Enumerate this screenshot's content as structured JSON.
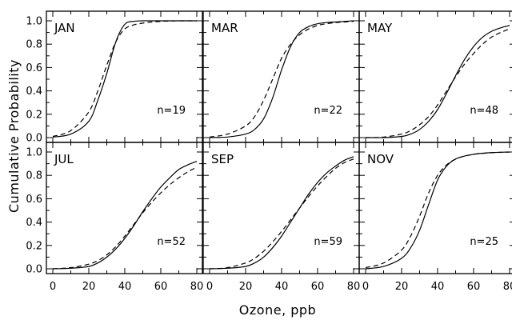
{
  "chart_data": {
    "type": "line",
    "xlabel": "Ozone, ppb",
    "ylabel": "Cumulative Probability",
    "xlim": [
      0,
      80
    ],
    "ylim": [
      0,
      1
    ],
    "x_ticks": [
      0,
      20,
      40,
      60,
      80
    ],
    "y_ticks": [
      0.0,
      0.2,
      0.4,
      0.6,
      0.8,
      1.0
    ],
    "x_tick_labels": [
      "0",
      "20",
      "40",
      "60",
      "80"
    ],
    "y_tick_labels": [
      "0.0",
      "0.2",
      "0.4",
      "0.6",
      "0.8",
      "1.0"
    ],
    "grid": false,
    "line_styles": [
      "solid",
      "dashed"
    ],
    "x": [
      0,
      10,
      20,
      25,
      30,
      35,
      40,
      45,
      50,
      55,
      60,
      65,
      70,
      75,
      80
    ],
    "panels": [
      {
        "label": "JAN",
        "n_label": "n=19",
        "series": [
          {
            "style": "solid",
            "values": [
              0.005,
              0.03,
              0.14,
              0.32,
              0.55,
              0.82,
              0.97,
              0.995,
              1.0,
              1.0,
              1.0,
              1.0,
              1.0,
              1.0,
              1.0
            ]
          },
          {
            "style": "dashed",
            "values": [
              0.01,
              0.06,
              0.22,
              0.4,
              0.62,
              0.82,
              0.93,
              0.965,
              0.98,
              0.99,
              0.995,
              0.998,
              1.0,
              1.0,
              1.0
            ]
          }
        ]
      },
      {
        "label": "MAR",
        "n_label": "n=22",
        "series": [
          {
            "style": "solid",
            "values": [
              0.0,
              0.005,
              0.03,
              0.07,
              0.16,
              0.34,
              0.58,
              0.78,
              0.9,
              0.95,
              0.975,
              0.985,
              0.99,
              0.995,
              1.0
            ]
          },
          {
            "style": "dashed",
            "values": [
              0.005,
              0.03,
              0.1,
              0.18,
              0.32,
              0.5,
              0.68,
              0.8,
              0.88,
              0.93,
              0.96,
              0.975,
              0.985,
              0.99,
              0.995
            ]
          }
        ]
      },
      {
        "label": "MAY",
        "n_label": "n=48",
        "series": [
          {
            "style": "solid",
            "values": [
              0.0,
              0.0,
              0.01,
              0.03,
              0.07,
              0.14,
              0.24,
              0.38,
              0.53,
              0.67,
              0.78,
              0.86,
              0.91,
              0.94,
              0.96
            ]
          },
          {
            "style": "dashed",
            "values": [
              0.0,
              0.005,
              0.03,
              0.06,
              0.11,
              0.18,
              0.28,
              0.4,
              0.52,
              0.63,
              0.72,
              0.8,
              0.86,
              0.9,
              0.93
            ]
          }
        ]
      },
      {
        "label": "JUL",
        "n_label": "n=52",
        "series": [
          {
            "style": "solid",
            "values": [
              0.0,
              0.005,
              0.02,
              0.05,
              0.1,
              0.17,
              0.26,
              0.37,
              0.49,
              0.6,
              0.7,
              0.78,
              0.85,
              0.89,
              0.92
            ]
          },
          {
            "style": "dashed",
            "values": [
              0.0,
              0.01,
              0.04,
              0.07,
              0.12,
              0.19,
              0.28,
              0.38,
              0.48,
              0.57,
              0.65,
              0.72,
              0.78,
              0.83,
              0.87
            ]
          }
        ]
      },
      {
        "label": "SEP",
        "n_label": "n=59",
        "series": [
          {
            "style": "solid",
            "values": [
              0.0,
              0.005,
              0.02,
              0.05,
              0.1,
              0.18,
              0.28,
              0.4,
              0.52,
              0.64,
              0.74,
              0.82,
              0.88,
              0.93,
              0.96
            ]
          },
          {
            "style": "dashed",
            "values": [
              0.0,
              0.01,
              0.05,
              0.09,
              0.15,
              0.23,
              0.32,
              0.42,
              0.52,
              0.62,
              0.71,
              0.79,
              0.86,
              0.91,
              0.94
            ]
          }
        ]
      },
      {
        "label": "NOV",
        "n_label": "n=25",
        "series": [
          {
            "style": "solid",
            "values": [
              0.0,
              0.02,
              0.09,
              0.18,
              0.33,
              0.55,
              0.76,
              0.88,
              0.94,
              0.965,
              0.98,
              0.99,
              0.995,
              0.998,
              1.0
            ]
          },
          {
            "style": "dashed",
            "values": [
              0.01,
              0.05,
              0.16,
              0.28,
              0.45,
              0.65,
              0.8,
              0.89,
              0.94,
              0.965,
              0.98,
              0.988,
              0.994,
              0.997,
              0.999
            ]
          }
        ]
      }
    ]
  }
}
